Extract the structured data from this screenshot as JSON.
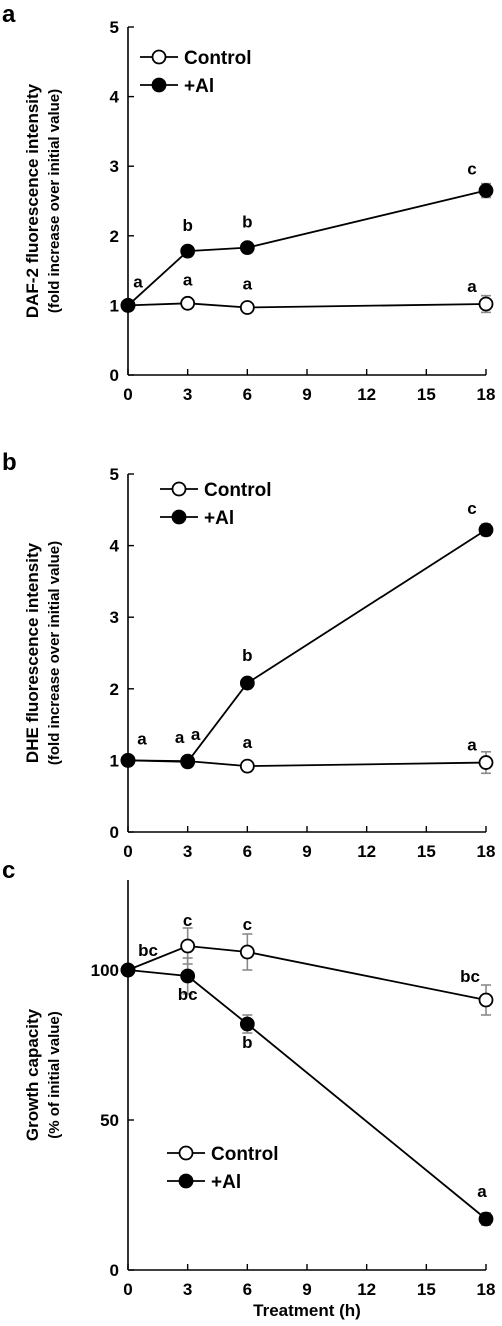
{
  "x_title": "Treatment (h)",
  "chart_data": [
    {
      "panel": "a",
      "type": "line",
      "x": [
        0,
        3,
        6,
        18
      ],
      "xticks": [
        0,
        3,
        6,
        9,
        12,
        15,
        18
      ],
      "xlim": [
        0,
        18
      ],
      "ylim": [
        0,
        5
      ],
      "yticks": [
        0,
        1,
        2,
        3,
        4,
        5
      ],
      "ylabel": "DAF-2 fluorescence intensity",
      "ylabel2": "(fold increase over initial value)",
      "legend_position": "top-left",
      "grid": false,
      "series": [
        {
          "name": "Control",
          "marker": "open-circle",
          "values": [
            1.0,
            1.03,
            0.97,
            1.02
          ],
          "errors": [
            0,
            0.03,
            0.03,
            0.12
          ],
          "labels": [
            "a",
            "a",
            "a",
            "a"
          ]
        },
        {
          "name": "+Al",
          "marker": "filled-circle",
          "values": [
            1.0,
            1.78,
            1.83,
            2.65
          ],
          "errors": [
            0,
            0.05,
            0.05,
            0.1
          ],
          "labels": [
            "",
            "b",
            "b",
            "c"
          ]
        }
      ]
    },
    {
      "panel": "b",
      "type": "line",
      "x": [
        0,
        3,
        6,
        18
      ],
      "xticks": [
        0,
        3,
        6,
        9,
        12,
        15,
        18
      ],
      "xlim": [
        0,
        18
      ],
      "ylim": [
        0,
        5
      ],
      "yticks": [
        0,
        1,
        2,
        3,
        4,
        5
      ],
      "ylabel": "DHE fluorescence intensity",
      "ylabel2": "(fold increase over initial value)",
      "legend_position": "top-left",
      "grid": false,
      "series": [
        {
          "name": "Control",
          "marker": "open-circle",
          "values": [
            1.0,
            0.99,
            0.92,
            0.97
          ],
          "errors": [
            0,
            0.03,
            0.03,
            0.15
          ],
          "labels": [
            "a",
            "a",
            "a",
            "a"
          ]
        },
        {
          "name": "+Al",
          "marker": "filled-circle",
          "values": [
            1.0,
            0.98,
            2.08,
            4.22
          ],
          "errors": [
            0,
            0.03,
            0.05,
            0.08
          ],
          "labels": [
            "",
            "a",
            "b",
            "c"
          ]
        }
      ]
    },
    {
      "panel": "c",
      "type": "line",
      "x": [
        0,
        3,
        6,
        18
      ],
      "xticks": [
        0,
        3,
        6,
        9,
        12,
        15,
        18
      ],
      "xlim": [
        0,
        18
      ],
      "ylim": [
        0,
        130
      ],
      "yticks": [
        0,
        50,
        100
      ],
      "ylabel": "Growth capacity",
      "ylabel2": "(% of initial value)",
      "xlabel": "Treatment (h)",
      "legend_position": "center",
      "grid": false,
      "series": [
        {
          "name": "Control",
          "marker": "open-circle",
          "values": [
            100,
            108,
            106,
            90
          ],
          "errors": [
            0,
            6,
            6,
            5
          ],
          "labels": [
            "bc",
            "c",
            "c",
            "bc"
          ]
        },
        {
          "name": "+Al",
          "marker": "filled-circle",
          "values": [
            100,
            98,
            82,
            17
          ],
          "errors": [
            0,
            6,
            3,
            2
          ],
          "labels": [
            "",
            "bc",
            "b",
            "a"
          ]
        }
      ]
    }
  ]
}
